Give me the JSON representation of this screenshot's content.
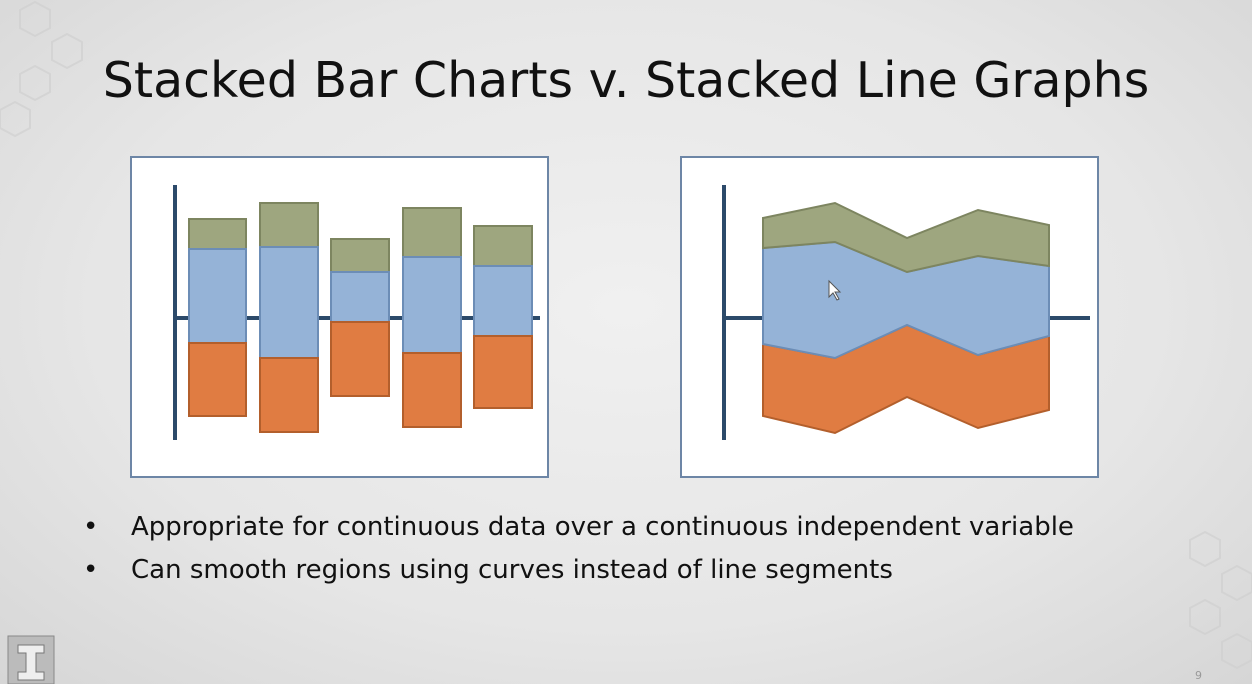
{
  "title": "Stacked Bar Charts v. Stacked Line Graphs",
  "bullets": [
    "Appropriate for continuous data over a continuous independent variable",
    "Can smooth regions using curves instead of line segments"
  ],
  "slide_number": "9"
}
